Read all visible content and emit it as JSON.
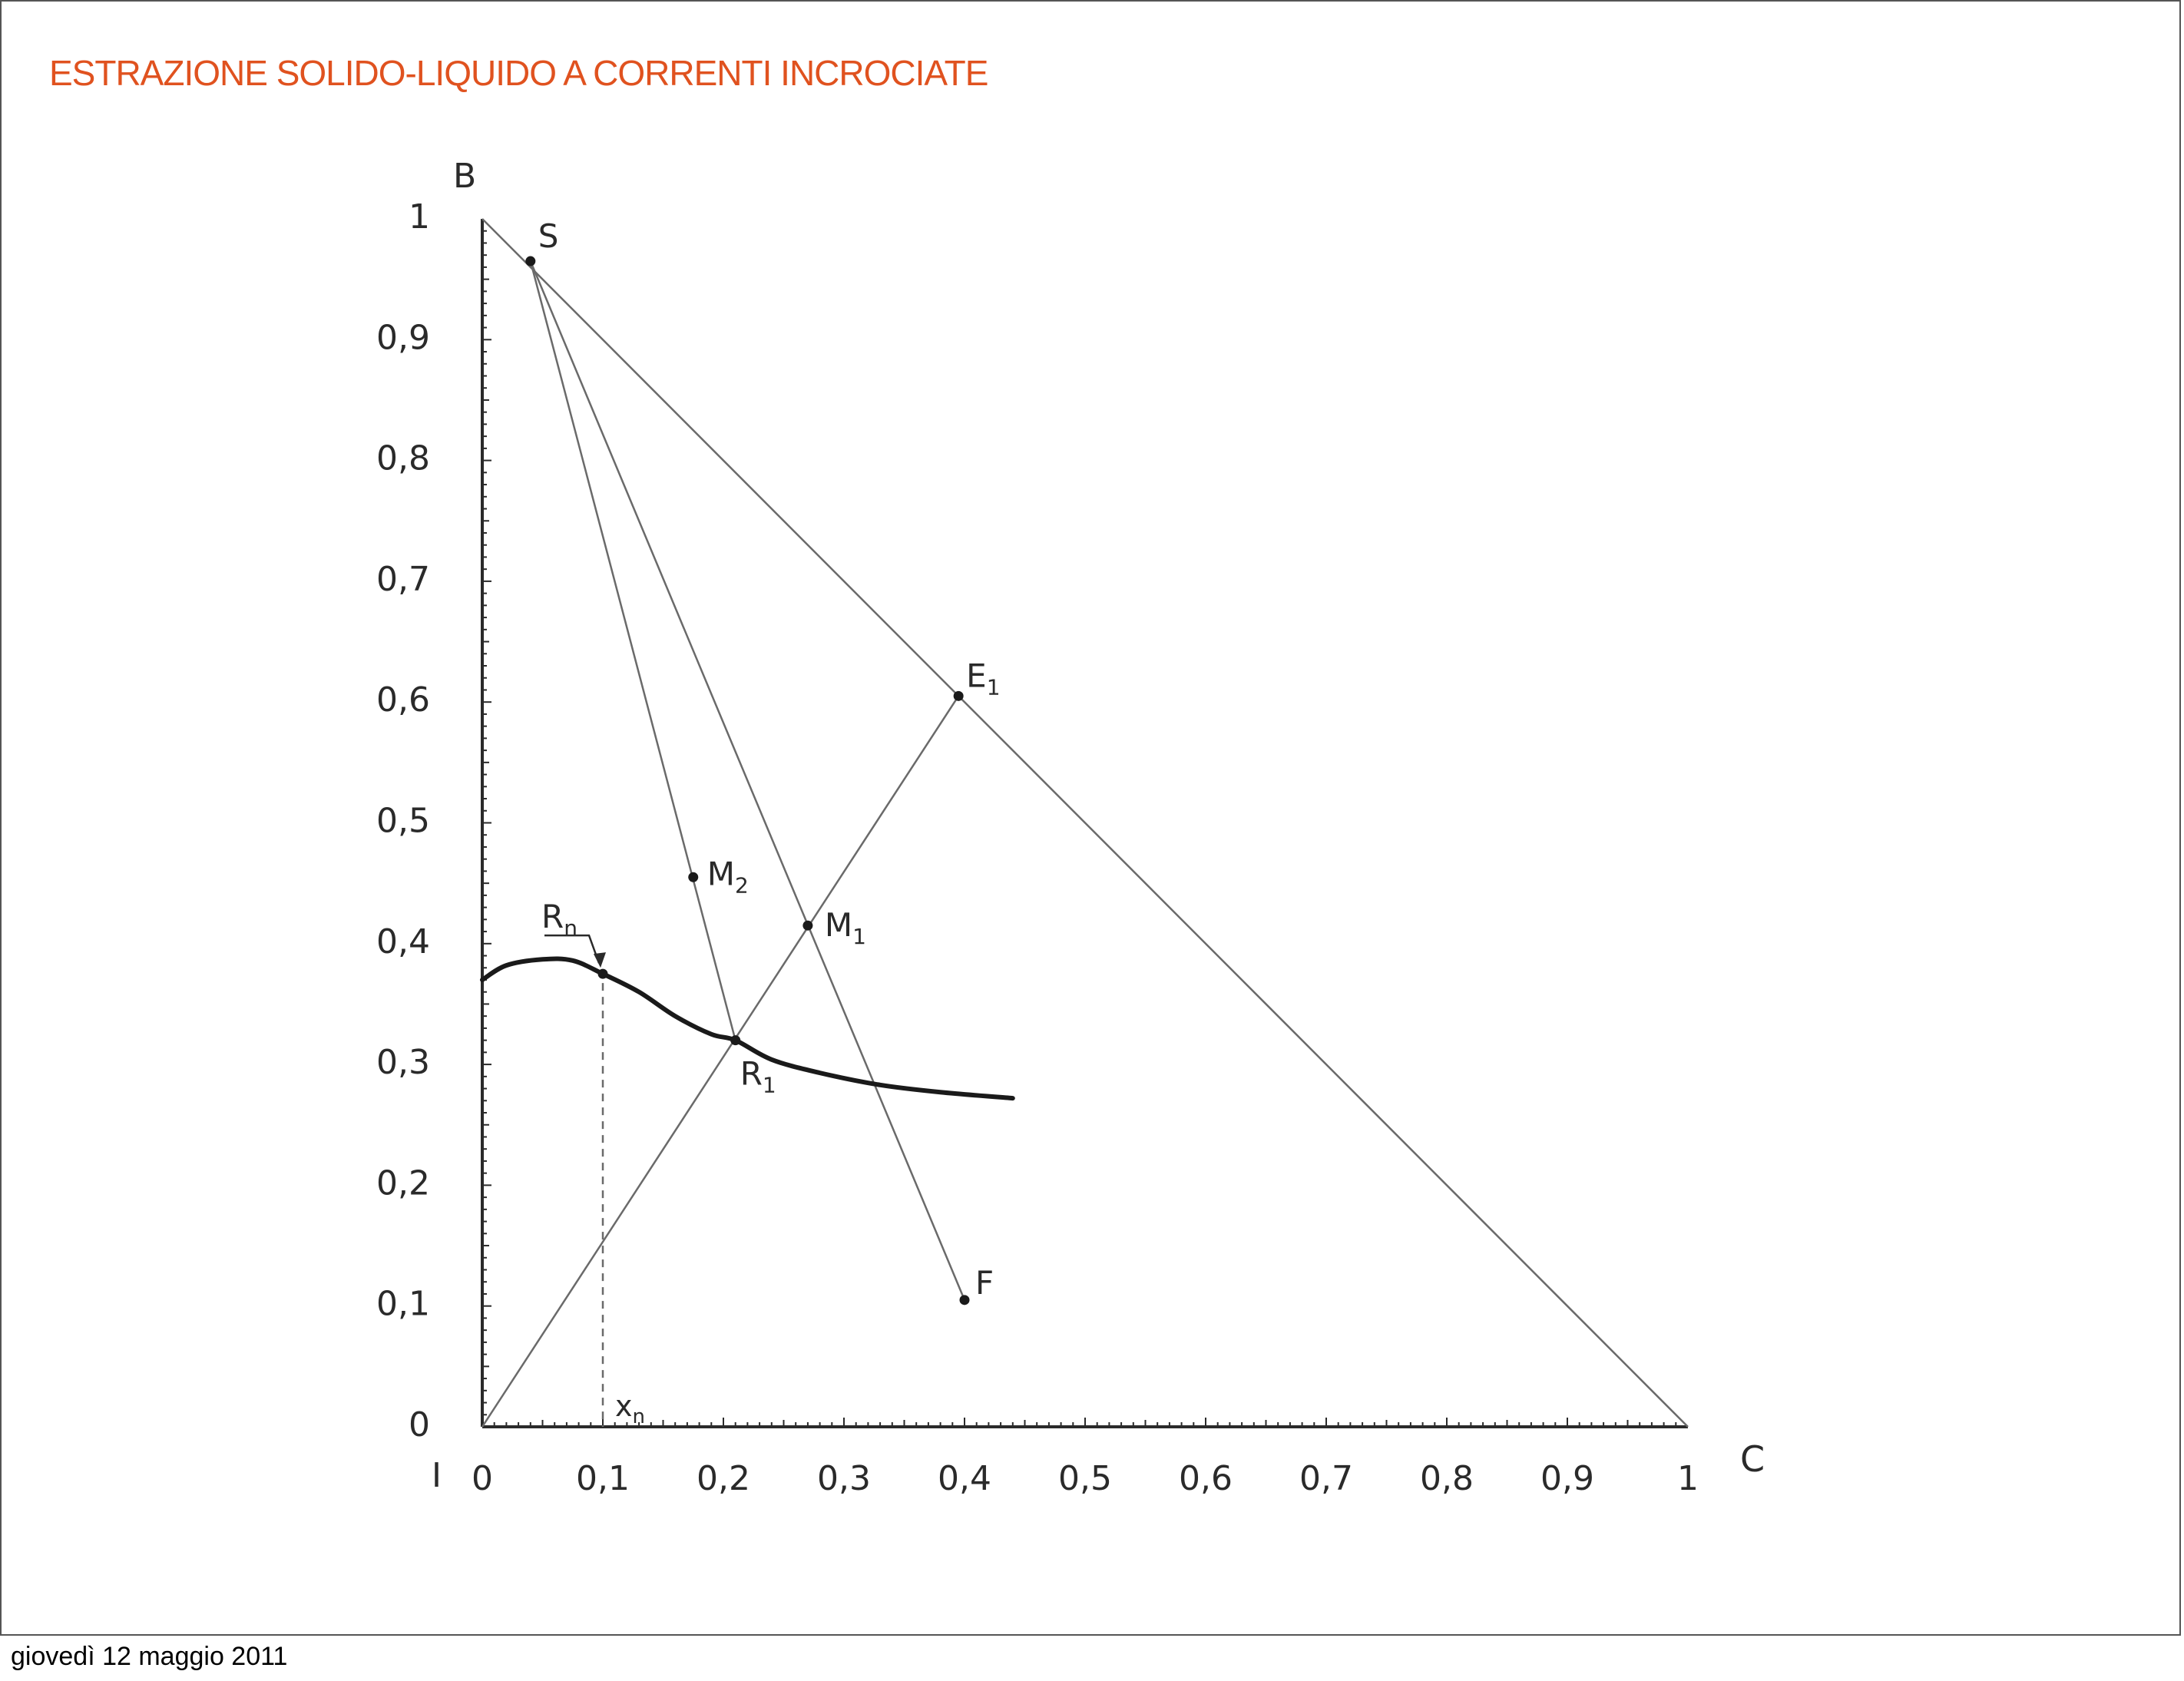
{
  "slide": {
    "title": "ESTRAZIONE SOLIDO-LIQUIDO A CORRENTI INCROCIATE",
    "footer": "giovedì 12 maggio 2011"
  },
  "colors": {
    "title": "#e0521f",
    "ink": "#2a2a2a",
    "thin_line": "#6a6a6a",
    "border": "#555555"
  },
  "chart_data": {
    "type": "scatter",
    "chart_kind": "right-triangle ternary diagram (solid-liquid extraction, cross-current)",
    "xlabel": "C",
    "ylabel": "B",
    "origin_label": "I",
    "xlim": [
      0,
      1
    ],
    "ylim": [
      0,
      1
    ],
    "x_ticks": [
      "0",
      "0,1",
      "0,2",
      "0,3",
      "0,4",
      "0,5",
      "0,6",
      "0,7",
      "0,8",
      "0,9",
      "1"
    ],
    "y_ticks": [
      "0",
      "0,1",
      "0,2",
      "0,3",
      "0,4",
      "0,5",
      "0,6",
      "0,7",
      "0,8",
      "0,9",
      "1"
    ],
    "tick_values": [
      0,
      0.1,
      0.2,
      0.3,
      0.4,
      0.5,
      0.6,
      0.7,
      0.8,
      0.9,
      1
    ],
    "grid": false,
    "points": [
      {
        "label": "S",
        "x": 0.04,
        "y": 0.965
      },
      {
        "label": "E1",
        "x": 0.395,
        "y": 0.605
      },
      {
        "label": "M2",
        "x": 0.175,
        "y": 0.455
      },
      {
        "label": "M1",
        "x": 0.27,
        "y": 0.415
      },
      {
        "label": "Rn",
        "x": 0.1,
        "y": 0.375
      },
      {
        "label": "R1",
        "x": 0.21,
        "y": 0.32
      },
      {
        "label": "F",
        "x": 0.4,
        "y": 0.105
      }
    ],
    "hypotenuse": [
      [
        0,
        1
      ],
      [
        1,
        0
      ]
    ],
    "tie_line": [
      [
        0,
        0
      ],
      [
        0.395,
        0.605
      ]
    ],
    "construction_lines": [
      {
        "from": "S",
        "to": "F",
        "via": "M1"
      },
      {
        "from": "S",
        "to": "R1",
        "via": "M2"
      }
    ],
    "underflow_curve": {
      "x": [
        0,
        0.02,
        0.05,
        0.075,
        0.1,
        0.13,
        0.16,
        0.19,
        0.21,
        0.24,
        0.28,
        0.33,
        0.38,
        0.44
      ],
      "y": [
        0.37,
        0.382,
        0.387,
        0.386,
        0.375,
        0.36,
        0.34,
        0.325,
        0.32,
        0.304,
        0.293,
        0.283,
        0.277,
        0.272
      ]
    },
    "xn_marker": {
      "x": 0.1,
      "label": "x_n"
    }
  }
}
